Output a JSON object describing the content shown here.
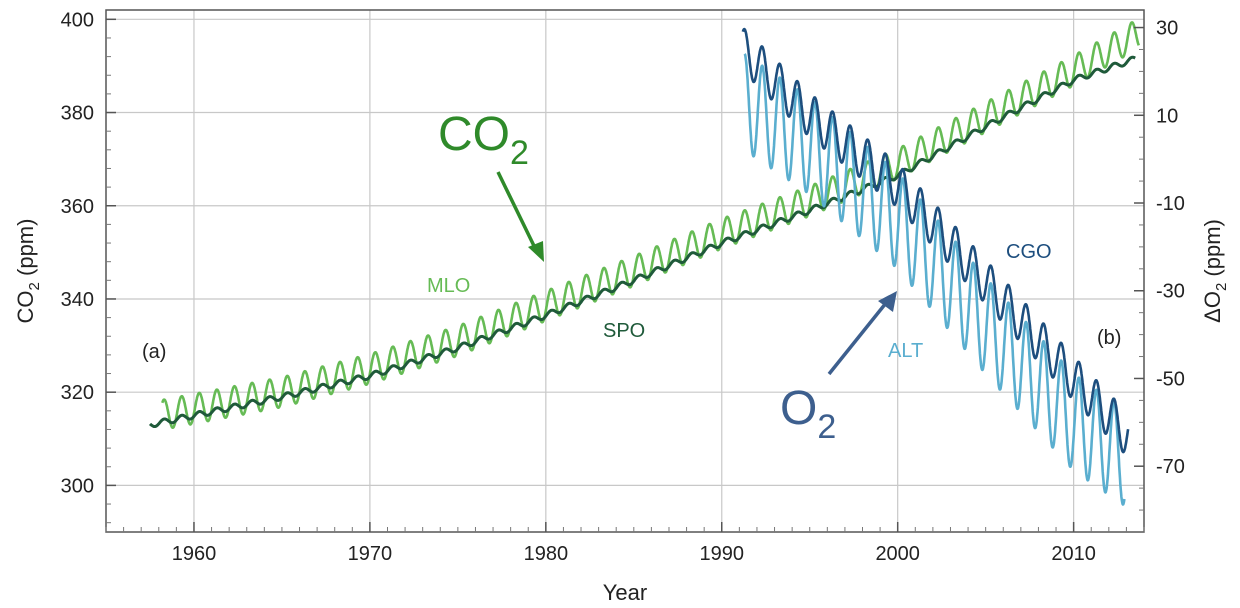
{
  "chart_data": {
    "type": "line",
    "xlabel": "Year",
    "ylabel_left_main": "CO",
    "ylabel_left_sub": "2",
    "ylabel_left_unit": "(ppm)",
    "ylabel_right_prefix": "ΔO",
    "ylabel_right_sub": "2",
    "ylabel_right_unit": "(ppm)",
    "xlim": [
      1955,
      2014
    ],
    "ylim_left": [
      290,
      402
    ],
    "ylim_right": [
      -85,
      34
    ],
    "x_ticks": [
      "1960",
      "1970",
      "1980",
      "1990",
      "2000",
      "2010"
    ],
    "y_left_ticks": [
      "300",
      "320",
      "340",
      "360",
      "380",
      "400"
    ],
    "y_right_ticks": [
      "-70",
      "-50",
      "-30",
      "-10",
      "10",
      "30"
    ],
    "grid": true,
    "panel_labels": [
      "(a)",
      "(b)"
    ],
    "annotations": {
      "co2_main": "CO",
      "co2_sub": "2",
      "o2_main": "O",
      "o2_sub": "2"
    },
    "series": [
      {
        "name": "MLO",
        "axis": "left",
        "color": "#66bb55",
        "start_year": 1958.2,
        "end_year": 2013.7,
        "trend_knots_year": [
          1958,
          1965,
          1970,
          1975,
          1980,
          1985,
          1990,
          1995,
          2000,
          2005,
          2010,
          2013.7
        ],
        "trend_knots_value": [
          315,
          320,
          325,
          331,
          338.5,
          346,
          354,
          361,
          369,
          379,
          389,
          397
        ],
        "seasonal_amplitude_ppm": 3.2
      },
      {
        "name": "SPO",
        "axis": "left",
        "color": "#1f5a3a",
        "start_year": 1957.5,
        "end_year": 2013.5,
        "trend_knots_year": [
          1957.5,
          1965,
          1970,
          1975,
          1980,
          1985,
          1990,
          1995,
          2000,
          2005,
          2010,
          2013.5
        ],
        "trend_knots_value": [
          313,
          319,
          323.5,
          329.5,
          336.5,
          344,
          352,
          359,
          366.5,
          377,
          387,
          391.5
        ],
        "seasonal_amplitude_ppm": 0.6
      },
      {
        "name": "CGO",
        "axis": "right",
        "color": "#1d4e7e",
        "start_year": 1991.2,
        "end_year": 2013.1,
        "trend_knots_year": [
          1991.2,
          1995,
          2000,
          2005,
          2010,
          2013.1
        ],
        "trend_knots_value": [
          25,
          10,
          -6,
          -28,
          -50,
          -63
        ],
        "seasonal_amplitude_ppm": 5
      },
      {
        "name": "ALT",
        "axis": "right",
        "color": "#5aaecf",
        "start_year": 1991.3,
        "end_year": 2012.9,
        "trend_knots_year": [
          1991.3,
          1995,
          2000,
          2005,
          2010,
          2012.9
        ],
        "trend_knots_value": [
          13,
          3,
          -14,
          -38,
          -60,
          -68
        ],
        "seasonal_amplitude_ppm": 11
      }
    ]
  }
}
